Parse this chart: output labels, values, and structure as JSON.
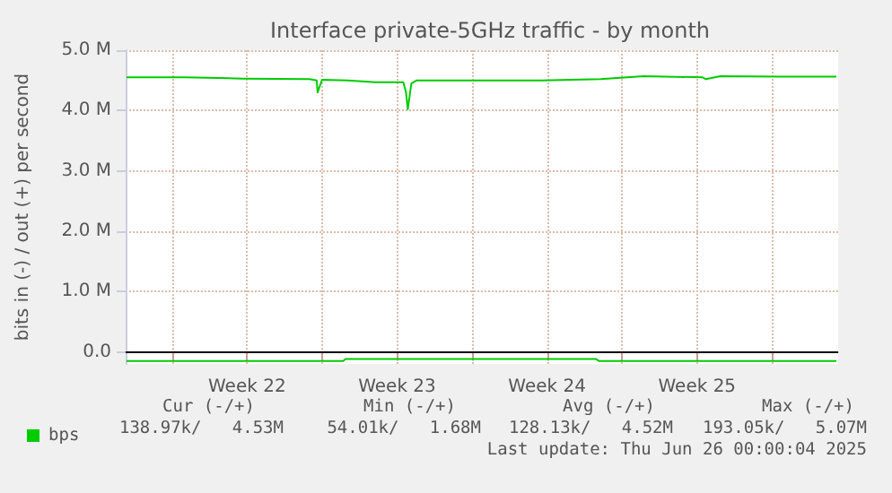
{
  "chart_data": {
    "type": "line",
    "title": "Interface private-5GHz traffic - by month",
    "ylabel": "bits in (-) / out (+) per second",
    "x": [
      "2025-05-23T21:00",
      "2025-05-26T14:00",
      "2025-05-29T07:00",
      "2025-06-01T10:00",
      "2025-06-01T18:00",
      "2025-06-01T19:00",
      "2025-06-02T00:00",
      "2025-06-03T05:00",
      "2025-06-04T12:00",
      "2025-06-05T19:00",
      "2025-06-05T22:00",
      "2025-06-06T00:00",
      "2025-06-06T04:00",
      "2025-06-06T10:00",
      "2025-06-09T12:00",
      "2025-06-12T06:00",
      "2025-06-15T00:00",
      "2025-06-17T00:00",
      "2025-06-19T18:00",
      "2025-06-19T22:00",
      "2025-06-20T14:00",
      "2025-06-23T07:00",
      "2025-06-26T00:00"
    ],
    "series": [
      {
        "name": "bps",
        "color": "#00cc00",
        "values": [
          4550000,
          4550000,
          4530000,
          4520000,
          4500000,
          4300000,
          4510000,
          4500000,
          4470000,
          4470000,
          4300000,
          4020000,
          4450000,
          4500000,
          4500000,
          4500000,
          4520000,
          4570000,
          4550000,
          4520000,
          4570000,
          4560000,
          4560000
        ]
      },
      {
        "color": "#00cc00",
        "x": [
          "2025-05-23T21:00",
          "2025-06-03T00:00",
          "2025-06-03T02:00",
          "2025-06-14T19:00",
          "2025-06-14T22:00",
          "2025-06-26T00:00"
        ],
        "values": [
          -150000,
          -150000,
          -120000,
          -120000,
          -150000,
          -150000
        ]
      }
    ],
    "xlim": [
      "2025-05-23T20:00",
      "2025-06-26T02:00"
    ],
    "xticks": [
      {
        "value": "2025-05-26",
        "label": null
      },
      {
        "value": "2025-05-29T12:00",
        "label": "Week 22"
      },
      {
        "value": "2025-06-02",
        "label": null
      },
      {
        "value": "2025-06-05T12:00",
        "label": "Week 23"
      },
      {
        "value": "2025-06-09",
        "label": null
      },
      {
        "value": "2025-06-12T12:00",
        "label": "Week 24"
      },
      {
        "value": "2025-06-16",
        "label": null
      },
      {
        "value": "2025-06-19T12:00",
        "label": "Week 25"
      },
      {
        "value": "2025-06-23",
        "label": null
      }
    ],
    "ylim": [
      -200000,
      5000000
    ],
    "yticks": [
      {
        "value": 0,
        "label": "0.0"
      },
      {
        "value": 1000000,
        "label": "1.0 M"
      },
      {
        "value": 2000000,
        "label": "2.0 M"
      },
      {
        "value": 3000000,
        "label": "3.0 M"
      },
      {
        "value": 4000000,
        "label": "4.0 M"
      },
      {
        "value": 5000000,
        "label": "5.0 M"
      }
    ],
    "ref_lines": [
      {
        "axis": "y",
        "value": 0,
        "color": "#000000"
      }
    ],
    "grid": true,
    "legend": "bottom left",
    "marker": "none",
    "line_style": "solid",
    "annotations": [
      "Cur (-/+)",
      "Min (-/+)",
      "Avg (-/+)",
      "Max (-/+)",
      "138.97k/   4.53M",
      "54.01k/   1.68M",
      "128.13k/   4.52M",
      "193.05k/   5.07M",
      "Last update: Thu Jun 26 00:00:04 2025"
    ]
  }
}
